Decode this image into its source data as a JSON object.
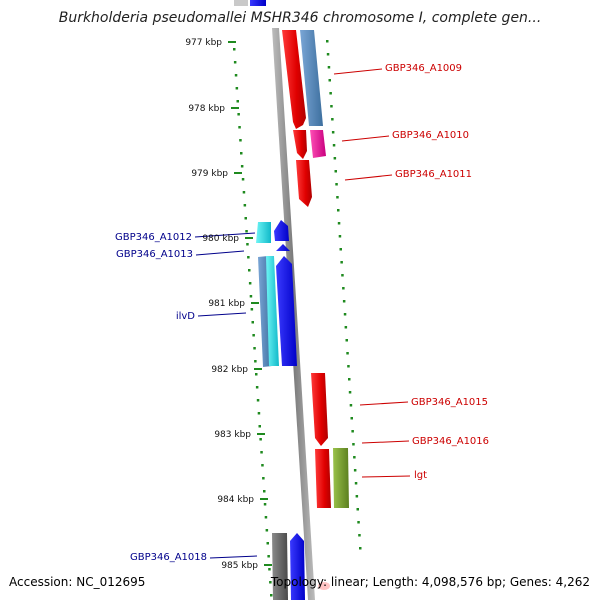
{
  "title": "Burkholderia pseudomallei MSHR346 chromosome I, complete gen...",
  "footer": {
    "accession": "Accession: NC_012695",
    "summary": "Topology: linear; Length: 4,098,576 bp; Genes: 4,262"
  },
  "ticks": [
    {
      "label": "977 kbp",
      "kbp": 977
    },
    {
      "label": "978 kbp",
      "kbp": 978
    },
    {
      "label": "979 kbp",
      "kbp": 979
    },
    {
      "label": "980 kbp",
      "kbp": 980
    },
    {
      "label": "981 kbp",
      "kbp": 981
    },
    {
      "label": "982 kbp",
      "kbp": 982
    },
    {
      "label": "983 kbp",
      "kbp": 983
    },
    {
      "label": "984 kbp",
      "kbp": 984
    },
    {
      "label": "985 kbp",
      "kbp": 985
    }
  ],
  "colors": {
    "forward_label": "#cc0000",
    "reverse_label": "#00008b",
    "tick_green": "#1f8a1f",
    "backbone": "#888888"
  },
  "gene_labels": [
    {
      "name": "GBP346_A1009",
      "strand": "forward"
    },
    {
      "name": "GBP346_A1010",
      "strand": "forward"
    },
    {
      "name": "GBP346_A1011",
      "strand": "forward"
    },
    {
      "name": "GBP346_A1012",
      "strand": "reverse"
    },
    {
      "name": "GBP346_A1013",
      "strand": "reverse"
    },
    {
      "name": "ilvD",
      "strand": "reverse"
    },
    {
      "name": "GBP346_A1015",
      "strand": "forward"
    },
    {
      "name": "GBP346_A1016",
      "strand": "forward"
    },
    {
      "name": "lgt",
      "strand": "forward"
    },
    {
      "name": "GBP346_A1018",
      "strand": "reverse"
    }
  ]
}
